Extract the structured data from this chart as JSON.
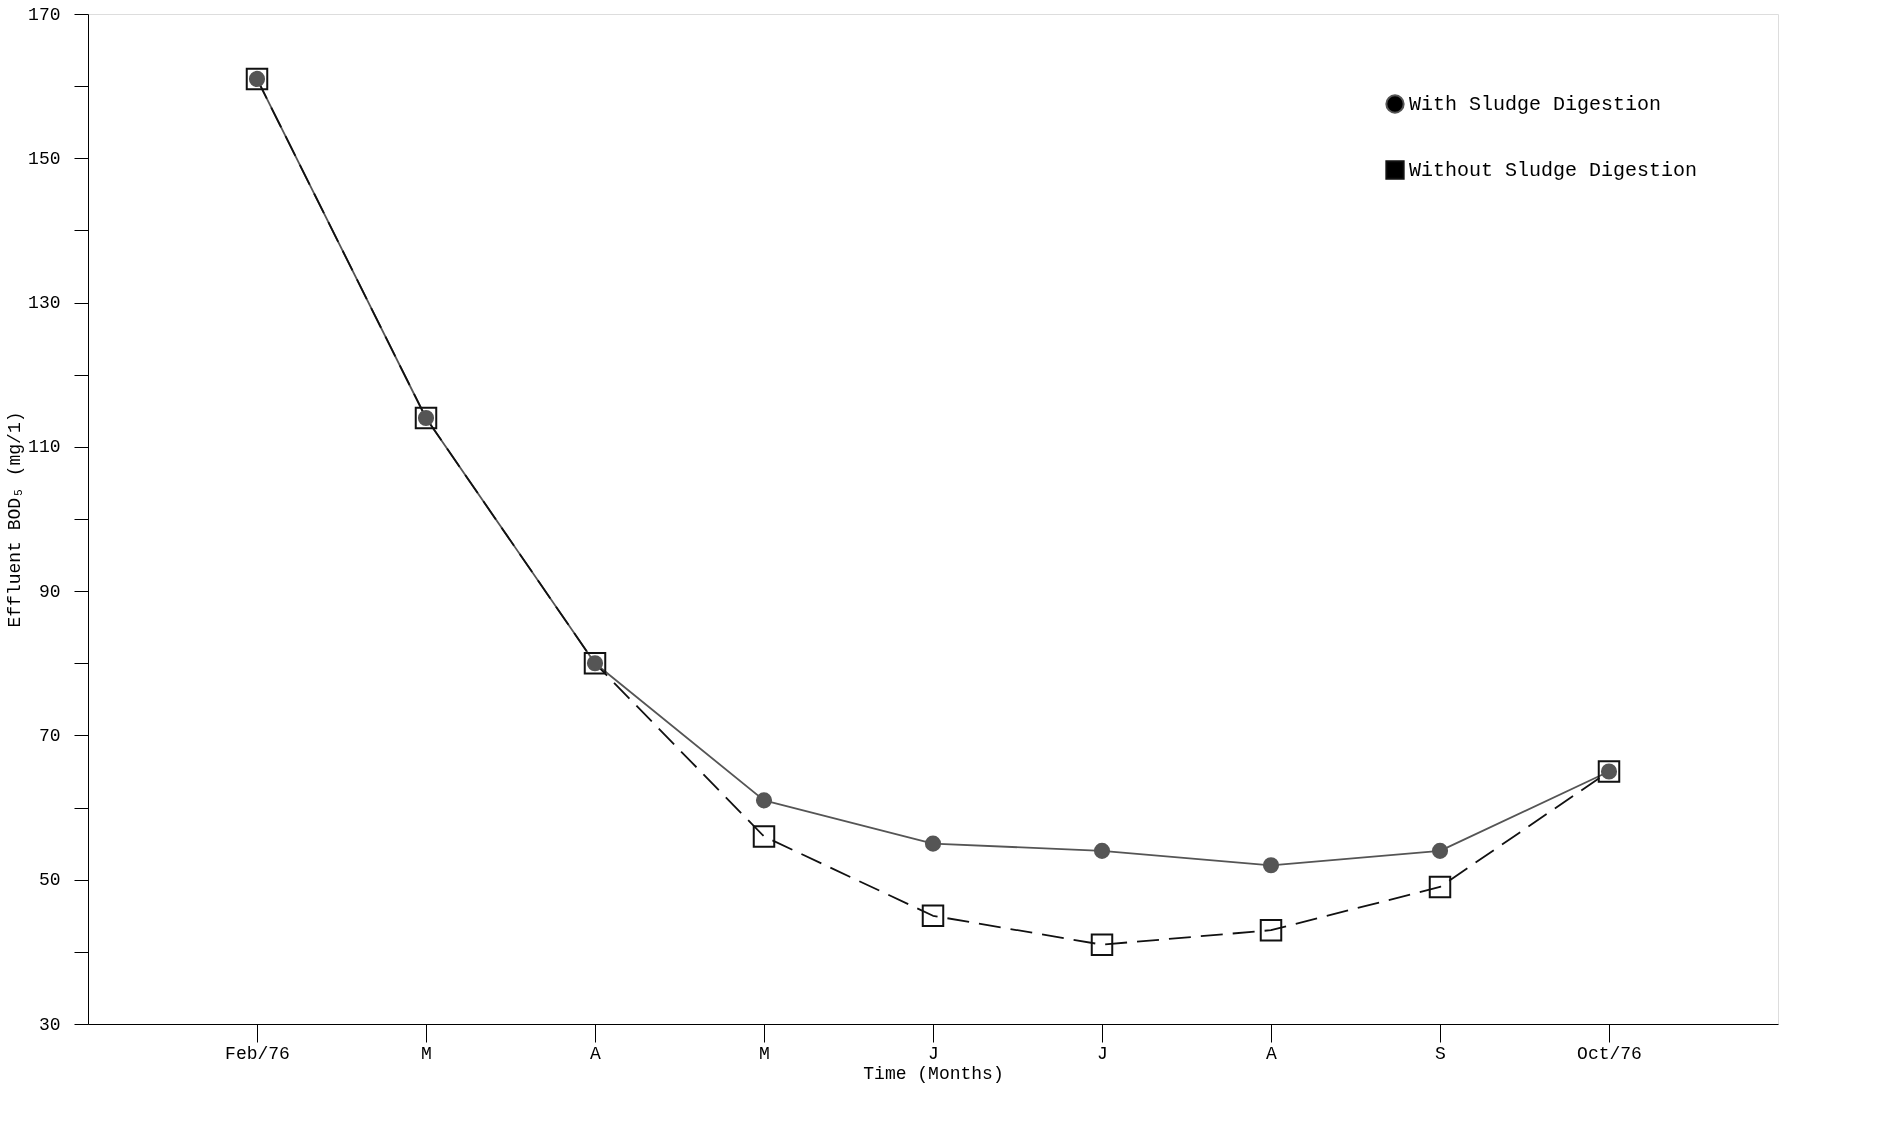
{
  "chart_data": {
    "type": "line",
    "xlabel": "Time (Months)",
    "ylabel": "Effluent BOD₅ (mg/1)",
    "categories": [
      "Feb/76",
      "M",
      "A",
      "M",
      "J",
      "J",
      "A",
      "S",
      "Oct/76"
    ],
    "series": [
      {
        "name": "With Sludge Digestion",
        "color": "#555555",
        "marker": "circle",
        "line_style": "solid",
        "values": [
          161,
          114,
          80,
          61,
          55,
          54,
          52,
          54,
          65
        ]
      },
      {
        "name": "Without Sludge Digestion",
        "color": "#111111",
        "marker": "square",
        "line_style": "dashed",
        "values": [
          161,
          114,
          80,
          56,
          45,
          41,
          43,
          49,
          65
        ]
      }
    ],
    "ylim": [
      30,
      170
    ],
    "yticks": [
      30,
      {
        "value": 40,
        "label": null
      },
      50,
      {
        "value": 60,
        "label": null
      },
      70,
      {
        "value": 80,
        "label": null
      },
      90,
      {
        "value": 100,
        "label": null
      },
      110,
      {
        "value": 120,
        "label": null
      },
      130,
      {
        "value": 140,
        "label": null
      },
      150,
      {
        "value": 160,
        "label": null
      },
      170
    ],
    "grid": false,
    "legend": "top right"
  }
}
